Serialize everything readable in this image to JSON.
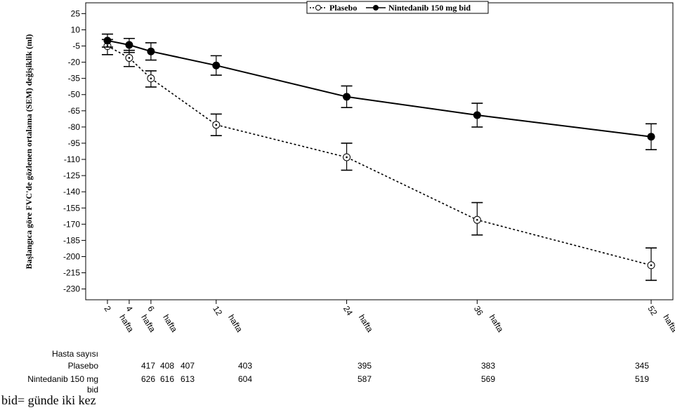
{
  "chart_data": {
    "type": "line",
    "ylabel": "Başlangıca göre FVC'de gözlenen ortalama (SEM) değişiklik (ml)",
    "xlabel": "",
    "ylim": [
      -240,
      35
    ],
    "yticks": [
      25,
      10,
      -5,
      -20,
      -35,
      -50,
      -65,
      -80,
      -95,
      -110,
      -125,
      -140,
      -155,
      -170,
      -185,
      -200,
      -215,
      -230
    ],
    "x": [
      2,
      4,
      6,
      12,
      24,
      36,
      52
    ],
    "x_tick_numbers": [
      "2",
      "4",
      "6",
      "12",
      "24",
      "36",
      "52"
    ],
    "x_tick_unit": "hafta",
    "legend_position": "top-center",
    "series": [
      {
        "name": "Plasebo",
        "style": "dashed",
        "marker": "open-circle-dot",
        "values": [
          -5,
          -16,
          -35,
          -78,
          -108,
          -166,
          -208
        ],
        "err_low": [
          -13,
          -24,
          -43,
          -88,
          -120,
          -180,
          -222
        ],
        "err_high": [
          1,
          -9,
          -28,
          -68,
          -95,
          -150,
          -192
        ]
      },
      {
        "name": "Nintedanib 150 mg bid",
        "style": "solid",
        "marker": "filled-circle",
        "values": [
          0,
          -4,
          -10,
          -23,
          -52,
          -69,
          -89
        ],
        "err_low": [
          -6,
          -11,
          -18,
          -32,
          -62,
          -80,
          -101
        ],
        "err_high": [
          6,
          2,
          -2,
          -14,
          -42,
          -58,
          -77
        ]
      }
    ],
    "patient_counts": {
      "header": "Hasta sayısı",
      "rows": [
        {
          "label": "Plasebo",
          "values": [
            "417",
            "408",
            "407",
            "403",
            "395",
            "383",
            "345"
          ]
        },
        {
          "label_line1": "Nintedanib 150 mg",
          "label_line2": "bid",
          "values": [
            "626",
            "616",
            "613",
            "604",
            "587",
            "569",
            "519"
          ]
        }
      ]
    },
    "colors": {
      "line": "#000000",
      "background": "#ffffff"
    }
  },
  "footnote": "bid= günde iki kez"
}
